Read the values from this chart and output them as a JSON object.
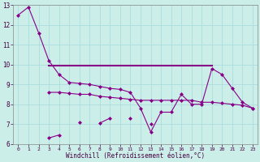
{
  "background_color": "#cceee8",
  "grid_color": "#aadddd",
  "line_color": "#880088",
  "x_values": [
    0,
    1,
    2,
    3,
    4,
    5,
    6,
    7,
    8,
    9,
    10,
    11,
    12,
    13,
    14,
    15,
    16,
    17,
    18,
    19,
    20,
    21,
    22,
    23
  ],
  "series_main": [
    12.5,
    12.9,
    11.6,
    10.2,
    9.5,
    9.1,
    9.05,
    9.0,
    8.9,
    8.8,
    8.75,
    8.6,
    7.8,
    6.6,
    7.6,
    7.6,
    8.5,
    8.0,
    8.0,
    9.8,
    9.5,
    8.8,
    8.1,
    7.8
  ],
  "series_flat_top": [
    null,
    null,
    null,
    9.95,
    9.95,
    9.95,
    9.95,
    9.95,
    9.95,
    9.95,
    9.95,
    9.95,
    9.95,
    9.95,
    9.95,
    9.95,
    9.95,
    9.95,
    9.95,
    9.95,
    null,
    null,
    null,
    null
  ],
  "series_flat_mid": [
    null,
    null,
    null,
    8.6,
    8.6,
    8.55,
    8.5,
    8.5,
    8.4,
    8.35,
    8.3,
    8.25,
    8.2,
    8.2,
    8.2,
    8.2,
    8.2,
    8.2,
    8.1,
    8.1,
    8.05,
    8.0,
    7.95,
    7.8
  ],
  "series_wiggly": [
    null,
    null,
    null,
    6.3,
    6.45,
    null,
    7.1,
    null,
    7.05,
    7.3,
    null,
    7.3,
    null,
    7.0,
    null,
    null,
    null,
    null,
    null,
    null,
    null,
    null,
    null,
    null
  ],
  "xlabel": "Windchill (Refroidissement éolien,°C)",
  "ylim": [
    6,
    13
  ],
  "xlim": [
    -0.5,
    23.5
  ],
  "yticks": [
    6,
    7,
    8,
    9,
    10,
    11,
    12,
    13
  ],
  "xticks": [
    0,
    1,
    2,
    3,
    4,
    5,
    6,
    7,
    8,
    9,
    10,
    11,
    12,
    13,
    14,
    15,
    16,
    17,
    18,
    19,
    20,
    21,
    22,
    23
  ]
}
